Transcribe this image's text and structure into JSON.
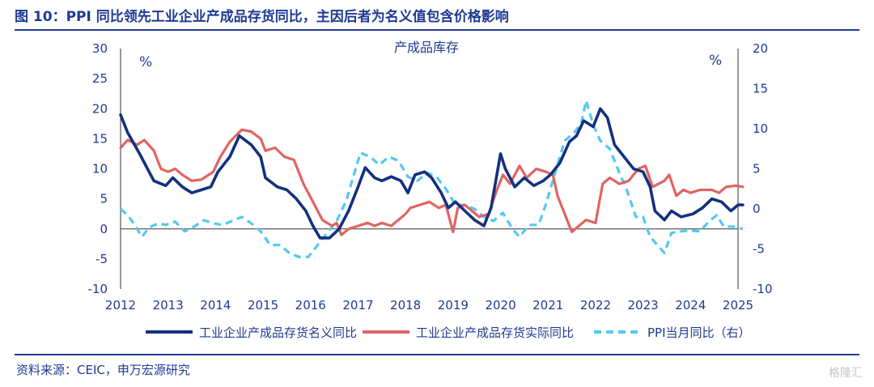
{
  "header": {
    "title": "图 10：PPI 同比领先工业企业产成品存货同比，主因后者为名义值包含价格影响"
  },
  "footer": {
    "source": "资料来源：CEIC，申万宏源研究",
    "watermark": "格隆汇"
  },
  "colors": {
    "nominal": "#14317f",
    "real": "#e06464",
    "ppi": "#55c8f0",
    "text": "#1f3a93"
  },
  "chart_data": {
    "type": "line",
    "title": "产成品库存",
    "left_axis": {
      "unit": "%",
      "range": [
        -10,
        30
      ],
      "ticks": [
        -10,
        -5,
        0,
        5,
        10,
        15,
        20,
        25,
        30
      ]
    },
    "right_axis": {
      "unit": "%",
      "range": [
        -10,
        20
      ],
      "ticks": [
        -10,
        -5,
        0,
        5,
        10,
        15,
        20
      ]
    },
    "x_range": [
      2012,
      2025
    ],
    "x_ticks": [
      "2012",
      "2013",
      "2014",
      "2015",
      "2016",
      "2017",
      "2018",
      "2019",
      "2020",
      "2021",
      "2022",
      "2023",
      "2024",
      "2025"
    ],
    "legend_position": "bottom",
    "series": [
      {
        "name": "工业企业产成品存货名义同比",
        "axis": "left",
        "style": "solid",
        "points": [
          [
            2012.0,
            19.0
          ],
          [
            2012.15,
            16.0
          ],
          [
            2012.4,
            12.5
          ],
          [
            2012.7,
            8.0
          ],
          [
            2012.95,
            7.2
          ],
          [
            2013.1,
            8.5
          ],
          [
            2013.3,
            7.0
          ],
          [
            2013.5,
            6.0
          ],
          [
            2013.7,
            6.5
          ],
          [
            2013.9,
            7.0
          ],
          [
            2014.05,
            9.5
          ],
          [
            2014.3,
            12.0
          ],
          [
            2014.5,
            15.5
          ],
          [
            2014.75,
            14.0
          ],
          [
            2014.95,
            12.0
          ],
          [
            2015.05,
            8.5
          ],
          [
            2015.3,
            7.0
          ],
          [
            2015.5,
            6.5
          ],
          [
            2015.7,
            5.0
          ],
          [
            2015.9,
            3.0
          ],
          [
            2016.05,
            0.5
          ],
          [
            2016.2,
            -1.5
          ],
          [
            2016.4,
            -1.5
          ],
          [
            2016.6,
            0.0
          ],
          [
            2016.8,
            3.0
          ],
          [
            2017.0,
            7.0
          ],
          [
            2017.15,
            10.2
          ],
          [
            2017.35,
            8.5
          ],
          [
            2017.5,
            8.0
          ],
          [
            2017.7,
            8.7
          ],
          [
            2017.9,
            8.0
          ],
          [
            2018.05,
            6.0
          ],
          [
            2018.2,
            9.0
          ],
          [
            2018.4,
            9.5
          ],
          [
            2018.55,
            8.5
          ],
          [
            2018.75,
            6.0
          ],
          [
            2018.9,
            3.5
          ],
          [
            2019.05,
            4.5
          ],
          [
            2019.25,
            3.0
          ],
          [
            2019.45,
            1.5
          ],
          [
            2019.65,
            0.5
          ],
          [
            2019.8,
            3.5
          ],
          [
            2020.0,
            12.5
          ],
          [
            2020.1,
            10.0
          ],
          [
            2020.3,
            7.0
          ],
          [
            2020.5,
            8.5
          ],
          [
            2020.7,
            7.2
          ],
          [
            2020.9,
            8.0
          ],
          [
            2021.05,
            9.0
          ],
          [
            2021.25,
            11.0
          ],
          [
            2021.45,
            14.5
          ],
          [
            2021.6,
            15.5
          ],
          [
            2021.75,
            18.0
          ],
          [
            2021.95,
            17.0
          ],
          [
            2022.1,
            20.0
          ],
          [
            2022.25,
            18.5
          ],
          [
            2022.4,
            14.0
          ],
          [
            2022.6,
            12.0
          ],
          [
            2022.8,
            10.0
          ],
          [
            2023.0,
            9.5
          ],
          [
            2023.15,
            7.0
          ],
          [
            2023.25,
            3.0
          ],
          [
            2023.45,
            1.5
          ],
          [
            2023.6,
            3.0
          ],
          [
            2023.8,
            2.0
          ],
          [
            2024.05,
            2.5
          ],
          [
            2024.25,
            3.5
          ],
          [
            2024.45,
            5.0
          ],
          [
            2024.65,
            4.5
          ],
          [
            2024.85,
            3.0
          ],
          [
            2025.0,
            4.0
          ],
          [
            2025.1,
            4.0
          ]
        ]
      },
      {
        "name": "工业企业产成品存货实际同比",
        "axis": "left",
        "style": "solid",
        "points": [
          [
            2012.0,
            13.5
          ],
          [
            2012.15,
            14.8
          ],
          [
            2012.35,
            14.0
          ],
          [
            2012.5,
            14.8
          ],
          [
            2012.7,
            13.0
          ],
          [
            2012.85,
            10.0
          ],
          [
            2013.0,
            9.5
          ],
          [
            2013.15,
            10.0
          ],
          [
            2013.3,
            9.0
          ],
          [
            2013.5,
            8.0
          ],
          [
            2013.7,
            8.2
          ],
          [
            2013.95,
            9.5
          ],
          [
            2014.1,
            12.0
          ],
          [
            2014.3,
            14.5
          ],
          [
            2014.55,
            16.5
          ],
          [
            2014.75,
            16.2
          ],
          [
            2014.95,
            15.0
          ],
          [
            2015.05,
            13.0
          ],
          [
            2015.25,
            13.5
          ],
          [
            2015.45,
            12.0
          ],
          [
            2015.65,
            11.5
          ],
          [
            2015.85,
            7.5
          ],
          [
            2016.05,
            4.5
          ],
          [
            2016.25,
            1.5
          ],
          [
            2016.45,
            0.5
          ],
          [
            2016.55,
            1.0
          ],
          [
            2016.65,
            -1.0
          ],
          [
            2016.8,
            0.0
          ],
          [
            2017.0,
            0.5
          ],
          [
            2017.2,
            1.0
          ],
          [
            2017.35,
            0.5
          ],
          [
            2017.5,
            1.0
          ],
          [
            2017.7,
            0.5
          ],
          [
            2017.85,
            1.5
          ],
          [
            2018.0,
            2.5
          ],
          [
            2018.1,
            3.5
          ],
          [
            2018.3,
            4.0
          ],
          [
            2018.5,
            4.5
          ],
          [
            2018.7,
            3.5
          ],
          [
            2018.85,
            4.0
          ],
          [
            2019.0,
            -0.5
          ],
          [
            2019.1,
            3.5
          ],
          [
            2019.25,
            4.0
          ],
          [
            2019.4,
            3.0
          ],
          [
            2019.55,
            2.0
          ],
          [
            2019.75,
            2.5
          ],
          [
            2019.9,
            6.0
          ],
          [
            2020.05,
            9.0
          ],
          [
            2020.2,
            7.5
          ],
          [
            2020.4,
            10.5
          ],
          [
            2020.55,
            8.5
          ],
          [
            2020.75,
            10.0
          ],
          [
            2020.95,
            9.5
          ],
          [
            2021.1,
            9.0
          ],
          [
            2021.2,
            5.5
          ],
          [
            2021.35,
            2.5
          ],
          [
            2021.5,
            -0.5
          ],
          [
            2021.65,
            0.5
          ],
          [
            2021.8,
            1.5
          ],
          [
            2022.0,
            1.0
          ],
          [
            2022.15,
            7.5
          ],
          [
            2022.3,
            8.5
          ],
          [
            2022.5,
            7.5
          ],
          [
            2022.7,
            8.0
          ],
          [
            2022.9,
            10.0
          ],
          [
            2023.05,
            10.5
          ],
          [
            2023.2,
            7.0
          ],
          [
            2023.45,
            8.0
          ],
          [
            2023.55,
            9.0
          ],
          [
            2023.7,
            5.5
          ],
          [
            2023.85,
            6.5
          ],
          [
            2024.0,
            6.0
          ],
          [
            2024.2,
            6.5
          ],
          [
            2024.45,
            6.5
          ],
          [
            2024.6,
            6.0
          ],
          [
            2024.75,
            7.0
          ],
          [
            2024.95,
            7.2
          ],
          [
            2025.1,
            7.0
          ]
        ]
      },
      {
        "name": "PPI当月同比（右）",
        "axis": "right",
        "style": "dashed",
        "points": [
          [
            2012.0,
            0.0
          ],
          [
            2012.15,
            -0.8
          ],
          [
            2012.3,
            -2.0
          ],
          [
            2012.45,
            -3.5
          ],
          [
            2012.6,
            -2.3
          ],
          [
            2012.8,
            -1.8
          ],
          [
            2012.95,
            -2.0
          ],
          [
            2013.15,
            -1.6
          ],
          [
            2013.35,
            -2.8
          ],
          [
            2013.55,
            -2.2
          ],
          [
            2013.75,
            -1.4
          ],
          [
            2013.95,
            -1.8
          ],
          [
            2014.15,
            -2.0
          ],
          [
            2014.35,
            -1.5
          ],
          [
            2014.55,
            -1.0
          ],
          [
            2014.75,
            -1.8
          ],
          [
            2014.95,
            -2.8
          ],
          [
            2015.15,
            -4.5
          ],
          [
            2015.35,
            -4.5
          ],
          [
            2015.55,
            -5.5
          ],
          [
            2015.75,
            -6.0
          ],
          [
            2015.95,
            -6.0
          ],
          [
            2016.15,
            -4.5
          ],
          [
            2016.35,
            -3.0
          ],
          [
            2016.55,
            -1.5
          ],
          [
            2016.75,
            1.0
          ],
          [
            2016.95,
            5.0
          ],
          [
            2017.05,
            7.0
          ],
          [
            2017.25,
            6.5
          ],
          [
            2017.45,
            5.5
          ],
          [
            2017.65,
            6.5
          ],
          [
            2017.85,
            6.0
          ],
          [
            2018.05,
            4.0
          ],
          [
            2018.25,
            3.5
          ],
          [
            2018.45,
            4.5
          ],
          [
            2018.65,
            4.0
          ],
          [
            2018.85,
            2.5
          ],
          [
            2019.05,
            0.5
          ],
          [
            2019.25,
            0.5
          ],
          [
            2019.45,
            0.0
          ],
          [
            2019.65,
            -1.0
          ],
          [
            2019.85,
            -1.5
          ],
          [
            2020.05,
            -0.5
          ],
          [
            2020.25,
            -2.5
          ],
          [
            2020.4,
            -3.5
          ],
          [
            2020.6,
            -2.0
          ],
          [
            2020.8,
            -2.0
          ],
          [
            2020.95,
            0.5
          ],
          [
            2021.15,
            4.5
          ],
          [
            2021.35,
            8.5
          ],
          [
            2021.55,
            9.5
          ],
          [
            2021.7,
            10.7
          ],
          [
            2021.8,
            13.5
          ],
          [
            2021.95,
            10.5
          ],
          [
            2022.1,
            8.5
          ],
          [
            2022.3,
            7.5
          ],
          [
            2022.5,
            4.5
          ],
          [
            2022.65,
            2.5
          ],
          [
            2022.85,
            -1.0
          ],
          [
            2023.0,
            -1.0
          ],
          [
            2023.15,
            -3.5
          ],
          [
            2023.3,
            -4.5
          ],
          [
            2023.45,
            -5.5
          ],
          [
            2023.6,
            -3.0
          ],
          [
            2023.8,
            -2.8
          ],
          [
            2024.0,
            -2.7
          ],
          [
            2024.2,
            -2.8
          ],
          [
            2024.4,
            -1.5
          ],
          [
            2024.55,
            -0.8
          ],
          [
            2024.7,
            -2.2
          ],
          [
            2024.9,
            -2.2
          ],
          [
            2025.1,
            -2.5
          ]
        ]
      }
    ]
  }
}
